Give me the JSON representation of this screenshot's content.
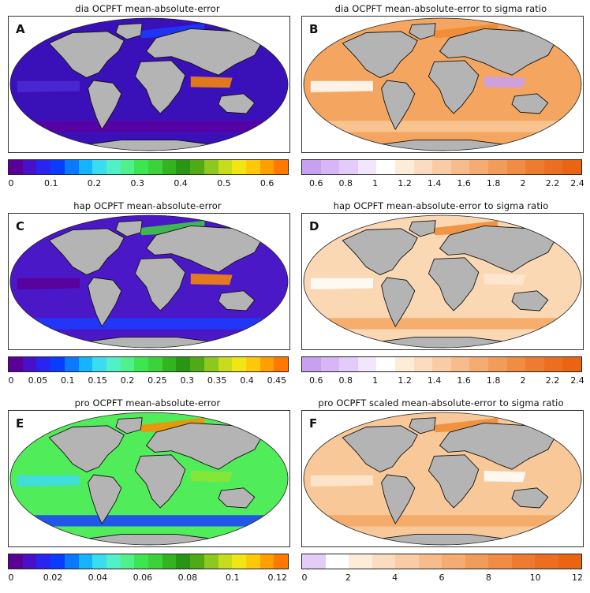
{
  "panels": [
    {
      "id": "A",
      "title": "dia OCPFT mean-absolute-error",
      "ocean_fill": "#3a11b8",
      "patches": [
        "#4b2ad6",
        "#5b00a0",
        "#1a3cff",
        "#ff8c00"
      ],
      "colorbar": {
        "colors": [
          "#5b0096",
          "#4810c8",
          "#2a24f0",
          "#0a3cff",
          "#0a78ff",
          "#14b4ff",
          "#3cdcf0",
          "#50f0c8",
          "#50f08c",
          "#3ce650",
          "#3cd23c",
          "#32b41e",
          "#289614",
          "#50aa14",
          "#8cc81e",
          "#c8dc1e",
          "#f0e614",
          "#ffc80a",
          "#ffa000",
          "#ff7800"
        ],
        "min": 0,
        "max": 0.65,
        "ticks": [
          "0",
          "0.1",
          "0.2",
          "0.3",
          "0.4",
          "0.5",
          "0.6"
        ],
        "tick_values": [
          0,
          0.1,
          0.2,
          0.3,
          0.4,
          0.5,
          0.6
        ]
      }
    },
    {
      "id": "B",
      "title": "dia OCPFT mean-absolute-error to sigma ratio",
      "ocean_fill": "#f4a660",
      "patches": [
        "#ffffff",
        "#f8c896",
        "#ef8a30",
        "#c8a0f0"
      ],
      "colorbar": {
        "colors": [
          "#c8a0f0",
          "#d6b6f5",
          "#e4ccfa",
          "#f2e6fd",
          "#ffffff",
          "#fdecd8",
          "#fbdcc0",
          "#f9cca6",
          "#f6bc8c",
          "#f4ac72",
          "#f29c5a",
          "#f08c44",
          "#ee7c30",
          "#ec6e20",
          "#ea6414"
        ],
        "min": 0.5,
        "max": 2.4,
        "ticks": [
          "0.6",
          "0.8",
          "1",
          "1.2",
          "1.4",
          "1.6",
          "1.8",
          "2",
          "2.2",
          "2.4"
        ],
        "tick_values": [
          0.6,
          0.8,
          1,
          1.2,
          1.4,
          1.6,
          1.8,
          2,
          2.2,
          2.4
        ]
      }
    },
    {
      "id": "C",
      "title": "hap OCPFT mean-absolute-error",
      "ocean_fill": "#4b18c8",
      "patches": [
        "#5b0096",
        "#1a3cff",
        "#3cd23c",
        "#ff8c00"
      ],
      "colorbar": {
        "colors": [
          "#5b0096",
          "#4810c8",
          "#2a24f0",
          "#0a3cff",
          "#0a78ff",
          "#14b4ff",
          "#3cdcf0",
          "#50f0c8",
          "#50f08c",
          "#3ce650",
          "#3cd23c",
          "#32b41e",
          "#289614",
          "#50aa14",
          "#8cc81e",
          "#c8dc1e",
          "#f0e614",
          "#ffc80a",
          "#ffa000",
          "#ff7800"
        ],
        "min": 0,
        "max": 0.47,
        "ticks": [
          "0",
          "0.05",
          "0.1",
          "0.15",
          "0.2",
          "0.25",
          "0.3",
          "0.35",
          "0.4",
          "0.45"
        ],
        "tick_values": [
          0,
          0.05,
          0.1,
          0.15,
          0.2,
          0.25,
          0.3,
          0.35,
          0.4,
          0.45
        ]
      }
    },
    {
      "id": "D",
      "title": "hap OCPFT mean-absolute-error to sigma ratio",
      "ocean_fill": "#fbd8b4",
      "patches": [
        "#ffffff",
        "#f4a660",
        "#ef8a30",
        "#fde8d2"
      ],
      "colorbar": {
        "colors": [
          "#c8a0f0",
          "#d6b6f5",
          "#e4ccfa",
          "#f2e6fd",
          "#ffffff",
          "#fdecd8",
          "#fbdcc0",
          "#f9cca6",
          "#f6bc8c",
          "#f4ac72",
          "#f29c5a",
          "#f08c44",
          "#ee7c30",
          "#ec6e20",
          "#ea6414"
        ],
        "min": 0.5,
        "max": 2.4,
        "ticks": [
          "0.6",
          "0.8",
          "1",
          "1.2",
          "1.4",
          "1.6",
          "1.8",
          "2",
          "2.2",
          "2.4"
        ],
        "tick_values": [
          0.6,
          0.8,
          1,
          1.2,
          1.4,
          1.6,
          1.8,
          2,
          2.2,
          2.4
        ]
      }
    },
    {
      "id": "E",
      "title": "pro OCPFT mean-absolute-error",
      "ocean_fill": "#50ec5a",
      "patches": [
        "#3cdcf0",
        "#1a3cff",
        "#ff8c00",
        "#8ce632"
      ],
      "colorbar": {
        "colors": [
          "#5b0096",
          "#4810c8",
          "#2a24f0",
          "#0a3cff",
          "#0a78ff",
          "#14b4ff",
          "#3cdcf0",
          "#50f0c8",
          "#50f08c",
          "#3ce650",
          "#3cd23c",
          "#32b41e",
          "#289614",
          "#50aa14",
          "#8cc81e",
          "#c8dc1e",
          "#f0e614",
          "#ffc80a",
          "#ffa000",
          "#ff7800"
        ],
        "min": 0,
        "max": 0.125,
        "ticks": [
          "0",
          "0.02",
          "0.04",
          "0.06",
          "0.08",
          "0.1",
          "0.12"
        ],
        "tick_values": [
          0,
          0.02,
          0.04,
          0.06,
          0.08,
          0.1,
          0.12
        ]
      }
    },
    {
      "id": "F",
      "title": "pro OCPFT scaled mean-absolute-error to sigma ratio",
      "ocean_fill": "#f9c898",
      "patches": [
        "#fde8d2",
        "#f4a660",
        "#ef8a30",
        "#ffffff"
      ],
      "colorbar": {
        "colors": [
          "#e4ccfa",
          "#ffffff",
          "#fdecd8",
          "#fbdcc0",
          "#f9cca6",
          "#f6bc8c",
          "#f4ac72",
          "#f29c5a",
          "#f08c44",
          "#ee7c30",
          "#ec6e20",
          "#ea6414"
        ],
        "min": 0,
        "max": 12,
        "ticks": [
          "0",
          "2",
          "4",
          "6",
          "8",
          "10",
          "12"
        ],
        "tick_values": [
          0,
          2,
          4,
          6,
          8,
          10,
          12
        ]
      }
    }
  ],
  "land_color": "#b4b4b4"
}
